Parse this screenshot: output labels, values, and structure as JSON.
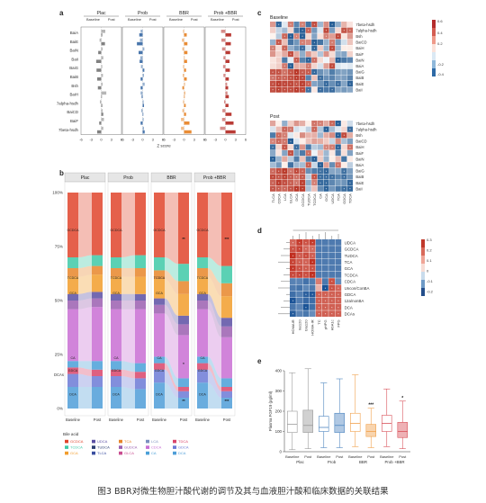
{
  "panels": {
    "a": {
      "label": "a",
      "columns": [
        "Plac",
        "Prob",
        "BBR",
        "Prob +BBR"
      ],
      "sub_headers": [
        "Baseline",
        "Post"
      ],
      "rows": [
        "BaiA",
        "BaiE",
        "BaiN",
        "BaiI",
        "BaiG",
        "BaiB",
        "Bsh",
        "BaiH",
        "7alpha-hsdh",
        "BaiCD",
        "BaiF",
        "7beta-hsdh"
      ],
      "axis_ticks": [
        "-6",
        "-3",
        "0",
        "3",
        "6",
        "-6",
        "-3",
        "0",
        "3",
        "6",
        "-6",
        "-3",
        "0",
        "3",
        "6",
        "-6",
        "-3",
        "0",
        "3",
        "6"
      ],
      "xlabel": "Z score",
      "colors": {
        "Plac": "#7a7a7a",
        "Prob": "#3f6fa8",
        "BBR": "#e8862a",
        "Prob +BBR": "#b5302a"
      }
    },
    "b": {
      "label": "b",
      "columns": [
        "Plac",
        "Prob",
        "BBR",
        "Prob +BBR"
      ],
      "y_ticks": [
        "100%",
        "75%",
        "50%",
        "25%",
        "0%"
      ],
      "x_ticks": [
        "Baseline",
        "Post"
      ],
      "segment_labels": [
        "GCDCA",
        "TCDCA",
        "GCA",
        "TDCA",
        "CA",
        "GDCA",
        "DCA",
        "DCAs"
      ],
      "sig_marks": [
        "**",
        "***",
        "*",
        "**",
        "***"
      ],
      "legend_title": "Bile acid",
      "legend": [
        {
          "name": "GCDCA",
          "color": "#e0442c"
        },
        {
          "name": "TCDCA",
          "color": "#3ec9a7"
        },
        {
          "name": "GCA",
          "color": "#f29d2c"
        },
        {
          "name": "UDCA",
          "color": "#5b4fa3"
        },
        {
          "name": "TUDCA",
          "color": "#2c3e73"
        },
        {
          "name": "TLCA",
          "color": "#3a4ea0"
        },
        {
          "name": "TCA",
          "color": "#e8862a"
        },
        {
          "name": "GUDCA",
          "color": "#9b5fb0"
        },
        {
          "name": "GLCA",
          "color": "#c94d90"
        },
        {
          "name": "LCA",
          "color": "#7b8fbf"
        },
        {
          "name": "CDCA",
          "color": "#c96fd4"
        },
        {
          "name": "CA",
          "color": "#4aa0d8"
        },
        {
          "name": "TDCA",
          "color": "#d9446a"
        },
        {
          "name": "GDCA",
          "color": "#6c7ad6"
        },
        {
          "name": "DCA",
          "color": "#4f9ed8"
        }
      ]
    },
    "c": {
      "label": "c",
      "sections": [
        "Baseline",
        "Post"
      ],
      "rows": [
        "7beta-hsdh",
        "7alpha-hsdh",
        "Bsh",
        "BaiCD",
        "BaiH",
        "BaiF",
        "BaiN",
        "BaiA",
        "BaiG",
        "BaiB",
        "BaiE",
        "BaiI"
      ],
      "cols": [
        "TLCA",
        "CDCA",
        "LCA",
        "GLCA",
        "DCA",
        "GCDCA",
        "TUDCA",
        "TCDCA",
        "CA",
        "GCA",
        "UDCA",
        "TCA",
        "GDCA",
        "TDCA"
      ],
      "scale_ticks": [
        "0.6",
        "0.4",
        "0.2",
        "-0.2",
        "-0.4"
      ]
    },
    "d": {
      "label": "d",
      "rows": [
        "UDCA",
        "GCDCA",
        "TUDCA",
        "TCA",
        "GCA",
        "TCDCA",
        "CDCA",
        "Uncon/ConBA",
        "GDCA",
        "12a/nonBA",
        "DCA",
        "DCAs"
      ],
      "cols": [
        "HOMAIR",
        "Ins120",
        "Glu120",
        "HOMA-IR",
        "TC",
        "pHPG",
        "HbA1c",
        "FPG"
      ],
      "scale_ticks": [
        "0.3",
        "0.2",
        "0.1",
        "0",
        "-0.1",
        "-0.2"
      ]
    },
    "e": {
      "label": "e",
      "ylabel": "Plasma FGF19 (pg/ml)",
      "y_ticks": [
        "0",
        "100",
        "200",
        "300",
        "400"
      ],
      "groups": [
        {
          "name": "Plac",
          "ticks": [
            "Baseline",
            "Post"
          ]
        },
        {
          "name": "Prob",
          "ticks": [
            "Baseline",
            "Post"
          ]
        },
        {
          "name": "BBR",
          "ticks": [
            "Baseline",
            "Post"
          ]
        },
        {
          "name": "Prob +BBR",
          "ticks": [
            "Baseline",
            "Post"
          ]
        }
      ],
      "sig_marks": [
        "***",
        "*"
      ]
    }
  },
  "chart_data": {
    "type": "box",
    "ylabel": "Plasma FGF19 (pg/ml)",
    "ylim": [
      0,
      400
    ],
    "categories": [
      "Plac Baseline",
      "Plac Post",
      "Prob Baseline",
      "Prob Post",
      "BBR Baseline",
      "BBR Post",
      "Prob +BBR Baseline",
      "Prob +BBR Post"
    ],
    "boxes": [
      {
        "min": 10,
        "q1": 95,
        "median": 135,
        "q3": 200,
        "max": 390
      },
      {
        "min": 15,
        "q1": 95,
        "median": 130,
        "q3": 205,
        "max": 410
      },
      {
        "min": 20,
        "q1": 100,
        "median": 120,
        "q3": 175,
        "max": 340
      },
      {
        "min": 20,
        "q1": 95,
        "median": 130,
        "q3": 190,
        "max": 360
      },
      {
        "min": 25,
        "q1": 100,
        "median": 140,
        "q3": 190,
        "max": 380
      },
      {
        "min": 20,
        "q1": 75,
        "median": 100,
        "q3": 135,
        "max": 215
      },
      {
        "min": 25,
        "q1": 100,
        "median": 140,
        "q3": 180,
        "max": 310
      },
      {
        "min": 15,
        "q1": 70,
        "median": 100,
        "q3": 145,
        "max": 250
      }
    ],
    "colors": [
      "#9a9a9a",
      "#9a9a9a",
      "#4f86c0",
      "#4f86c0",
      "#f0a04b",
      "#f0a04b",
      "#d9525a",
      "#d9525a"
    ]
  },
  "caption": "图3 BBR对微生物胆汁酸代谢的调节及其与血液胆汁酸和临床数据的关联结果"
}
